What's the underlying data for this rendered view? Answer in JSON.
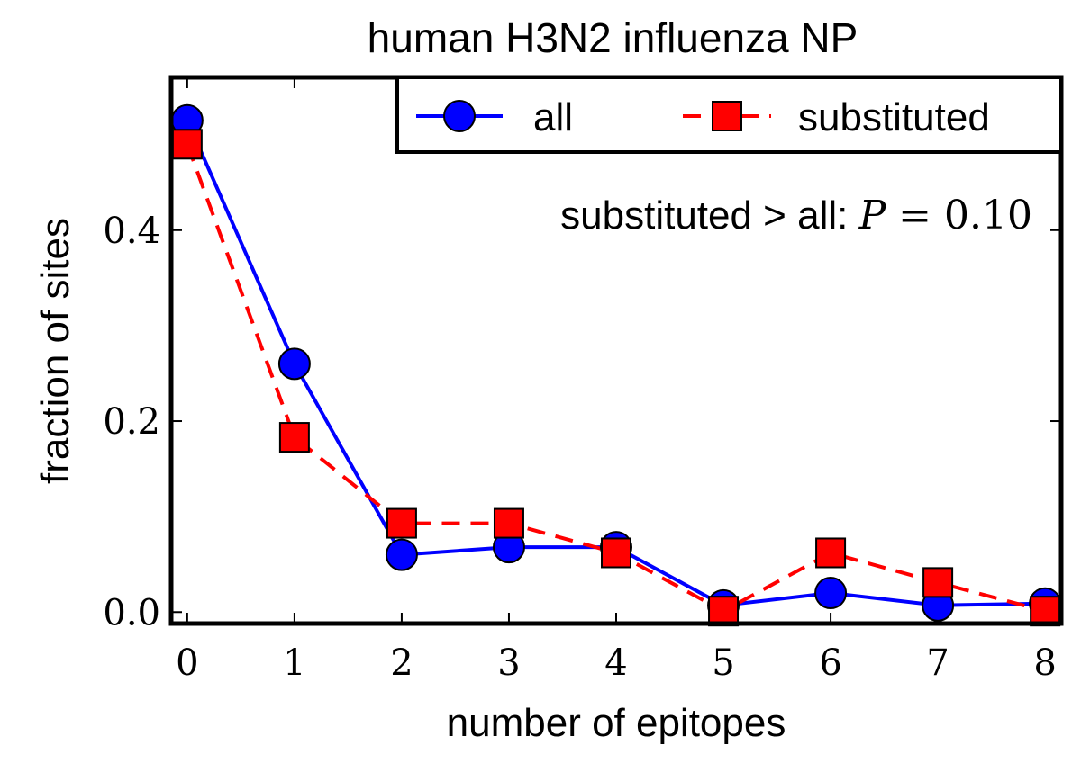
{
  "chart_data": {
    "type": "line",
    "title": "human H3N2 influenza NP",
    "xlabel": "number of epitopes",
    "ylabel": "fraction of sites",
    "x": [
      0,
      1,
      2,
      3,
      4,
      5,
      6,
      7,
      8
    ],
    "xlim": [
      -0.15,
      8.15
    ],
    "ylim": [
      -0.012,
      0.56
    ],
    "xticks": [
      "0",
      "1",
      "2",
      "3",
      "4",
      "5",
      "6",
      "7",
      "8"
    ],
    "yticks": [
      "0.0",
      "0.2",
      "0.4"
    ],
    "ytick_values": [
      0.0,
      0.2,
      0.4
    ],
    "grid": false,
    "legend": "top-right",
    "annotation": {
      "text_prefix": "substituted > all: ",
      "math_var": "P",
      "math_rest": " = 0.10"
    },
    "series": [
      {
        "name": "all",
        "color": "#0000ff",
        "marker": "circle",
        "linestyle": "solid",
        "values": [
          0.515,
          0.26,
          0.06,
          0.068,
          0.068,
          0.007,
          0.02,
          0.007,
          0.009
        ]
      },
      {
        "name": "substituted",
        "color": "#ff0000",
        "marker": "square",
        "linestyle": "dashed",
        "values": [
          0.49,
          0.183,
          0.093,
          0.093,
          0.062,
          0.001,
          0.062,
          0.031,
          0.001
        ]
      }
    ]
  }
}
